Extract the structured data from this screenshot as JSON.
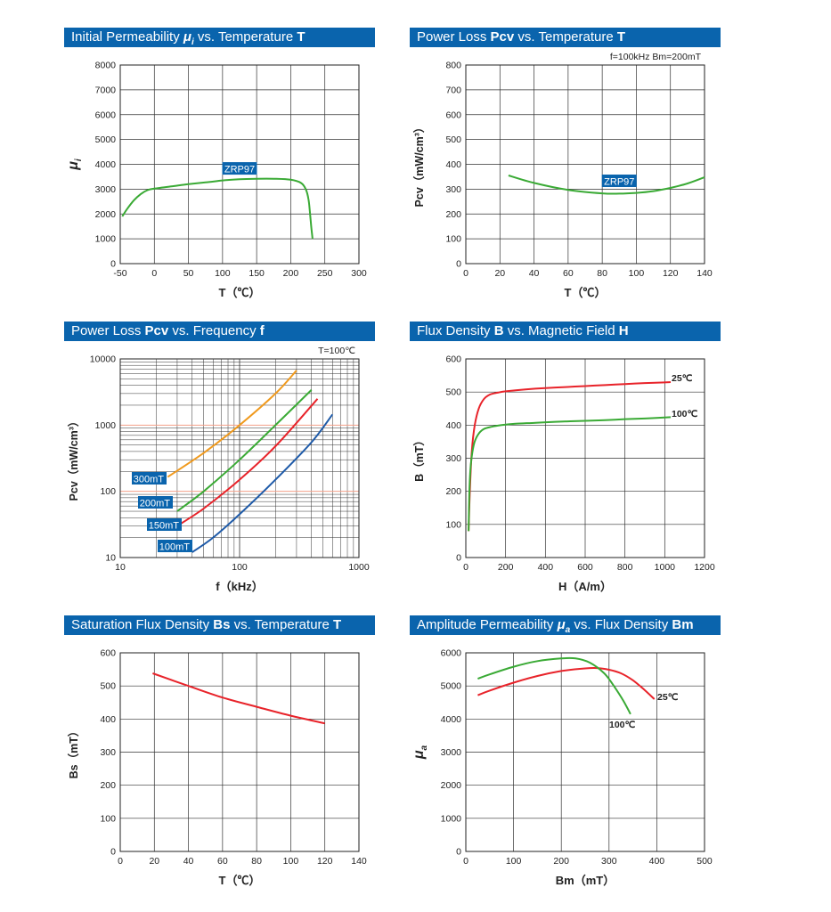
{
  "chart_data": [
    {
      "type": "line",
      "title": {
        "pre": "Initial Permeability ",
        "sym": "μ",
        "sub": "i",
        "mid": " vs. Temperature ",
        "bold": "T"
      },
      "xlabel": "T（℃）",
      "ylabel": {
        "sym": "μ",
        "sub": "i"
      },
      "xlim": [
        -50,
        300
      ],
      "ylim": [
        0,
        8000
      ],
      "xticks": [
        "-50",
        "0",
        "50",
        "100",
        "150",
        "200",
        "250",
        "300"
      ],
      "yticks": [
        "0",
        "1000",
        "2000",
        "3000",
        "4000",
        "5000",
        "6000",
        "7000",
        "8000"
      ],
      "grid": true,
      "annotations": [
        {
          "text": "ZRP97",
          "x": 125,
          "y": 3800,
          "boxed": true
        }
      ],
      "series": [
        {
          "name": "",
          "color": "#3aaa35",
          "x": [
            -47,
            -40,
            -30,
            -20,
            -10,
            0,
            25,
            50,
            75,
            100,
            125,
            150,
            175,
            200,
            215,
            222,
            226,
            228,
            230,
            232
          ],
          "y": [
            1900,
            2200,
            2550,
            2800,
            2960,
            3020,
            3110,
            3200,
            3270,
            3350,
            3400,
            3420,
            3420,
            3380,
            3250,
            3000,
            2600,
            2100,
            1500,
            1000
          ]
        }
      ]
    },
    {
      "type": "line",
      "title": {
        "pre": "Power Loss ",
        "bold": "Pcv",
        "mid": " vs. Temperature ",
        "bold2": "T"
      },
      "xlabel": "T（℃）",
      "ylabel": "Pcv（mW/cm³）",
      "conditions": "f=100kHz    Bm=200mT",
      "xlim": [
        0,
        140
      ],
      "ylim": [
        0,
        800
      ],
      "xticks": [
        "0",
        "20",
        "40",
        "60",
        "80",
        "100",
        "120",
        "140"
      ],
      "yticks": [
        "0",
        "100",
        "200",
        "300",
        "400",
        "500",
        "600",
        "700",
        "800"
      ],
      "grid": true,
      "annotations": [
        {
          "text": "ZRP97",
          "x": 90,
          "y": 330,
          "boxed": true
        }
      ],
      "series": [
        {
          "name": "",
          "color": "#3aaa35",
          "x": [
            25,
            40,
            60,
            80,
            90,
            100,
            110,
            120,
            130,
            140
          ],
          "y": [
            355,
            325,
            297,
            283,
            282,
            285,
            292,
            305,
            323,
            348
          ]
        }
      ]
    },
    {
      "type": "line",
      "title": {
        "pre": "Power Loss ",
        "bold": "Pcv",
        "mid": " vs. Frequency ",
        "bold2": "f"
      },
      "xlabel": "f（kHz）",
      "ylabel": "Pcv（mW/cm³）",
      "conditions": "T=100℃",
      "xscale": "log",
      "yscale": "log",
      "xlim": [
        10,
        1000
      ],
      "ylim": [
        10,
        10000
      ],
      "xticks": [
        "10",
        "100",
        "1000"
      ],
      "yticks": [
        "10",
        "100",
        "1000",
        "10000"
      ],
      "grid": true,
      "series": [
        {
          "name": "300mT",
          "color": "#f09a1e",
          "x": [
            25,
            50,
            100,
            200,
            300
          ],
          "y": [
            165,
            380,
            1000,
            3000,
            6700
          ]
        },
        {
          "name": "200mT",
          "color": "#3aaa35",
          "x": [
            30,
            50,
            100,
            200,
            400
          ],
          "y": [
            50,
            100,
            300,
            1000,
            3400
          ]
        },
        {
          "name": "150mT",
          "color": "#e8232a",
          "x": [
            30,
            50,
            100,
            200,
            450
          ],
          "y": [
            30,
            55,
            150,
            480,
            2500
          ]
        },
        {
          "name": "100mT",
          "color": "#1e5aa8",
          "x": [
            40,
            60,
            100,
            200,
            400,
            600
          ],
          "y": [
            12,
            20,
            45,
            150,
            550,
            1450
          ]
        }
      ]
    },
    {
      "type": "line",
      "title": {
        "pre": "Flux Density ",
        "bold": "B",
        "mid": " vs. Magnetic Field ",
        "bold2": "H"
      },
      "xlabel": "H（A/m）",
      "ylabel": "B（mT）",
      "xlim": [
        0,
        1200
      ],
      "ylim": [
        0,
        600
      ],
      "xticks": [
        "0",
        "200",
        "400",
        "600",
        "800",
        "1000",
        "1200"
      ],
      "yticks": [
        "0",
        "100",
        "200",
        "300",
        "400",
        "500",
        "600"
      ],
      "grid": true,
      "series": [
        {
          "name": "25℃",
          "color": "#e8232a",
          "x": [
            14,
            20,
            30,
            45,
            65,
            90,
            120,
            160,
            200,
            300,
            400,
            500,
            600,
            700,
            800,
            900,
            1000,
            1030
          ],
          "y": [
            80,
            200,
            320,
            400,
            450,
            478,
            492,
            498,
            502,
            508,
            512,
            515,
            518,
            521,
            524,
            527,
            529,
            530
          ]
        },
        {
          "name": "100℃",
          "color": "#3aaa35",
          "x": [
            14,
            18,
            25,
            40,
            60,
            90,
            130,
            180,
            250,
            350,
            450,
            600,
            700,
            800,
            900,
            1000,
            1030
          ],
          "y": [
            80,
            200,
            280,
            340,
            370,
            388,
            395,
            400,
            404,
            407,
            410,
            413,
            415,
            418,
            420,
            423,
            424
          ]
        }
      ]
    },
    {
      "type": "line",
      "title": {
        "pre": "Saturation Flux Density ",
        "bold": "Bs",
        "mid": " vs. Temperature ",
        "bold2": "T"
      },
      "xlabel": "T（℃）",
      "ylabel": "Bs（mT）",
      "xlim": [
        0,
        140
      ],
      "ylim": [
        0,
        600
      ],
      "xticks": [
        "0",
        "20",
        "40",
        "60",
        "80",
        "100",
        "120",
        "140"
      ],
      "yticks": [
        "0",
        "100",
        "200",
        "300",
        "400",
        "500",
        "600"
      ],
      "grid": true,
      "series": [
        {
          "name": "",
          "color": "#e8232a",
          "x": [
            19,
            40,
            60,
            80,
            100,
            120
          ],
          "y": [
            538,
            500,
            465,
            437,
            410,
            387
          ]
        }
      ]
    },
    {
      "type": "line",
      "title": {
        "pre": "Amplitude Permeability ",
        "sym": "μ",
        "sub": "a",
        "mid": " vs. Flux Density ",
        "bold": "Bm"
      },
      "xlabel": "Bm（mT）",
      "ylabel": {
        "sym": "μ",
        "sub": "a"
      },
      "xlim": [
        0,
        500
      ],
      "ylim": [
        0,
        6000
      ],
      "xticks": [
        "0",
        "100",
        "200",
        "300",
        "400",
        "500"
      ],
      "yticks": [
        "0",
        "1000",
        "2000",
        "3000",
        "4000",
        "5000",
        "6000"
      ],
      "grid": true,
      "series": [
        {
          "name": "25℃",
          "color": "#e8232a",
          "x": [
            25,
            50,
            100,
            150,
            200,
            250,
            275,
            300,
            325,
            350,
            375,
            395
          ],
          "y": [
            4720,
            4860,
            5100,
            5300,
            5450,
            5530,
            5540,
            5490,
            5380,
            5170,
            4870,
            4600
          ]
        },
        {
          "name": "100℃",
          "color": "#3aaa35",
          "x": [
            25,
            50,
            100,
            150,
            200,
            230,
            260,
            290,
            310,
            330,
            345
          ],
          "y": [
            5220,
            5350,
            5580,
            5750,
            5830,
            5830,
            5700,
            5380,
            5000,
            4550,
            4150
          ]
        }
      ]
    }
  ]
}
